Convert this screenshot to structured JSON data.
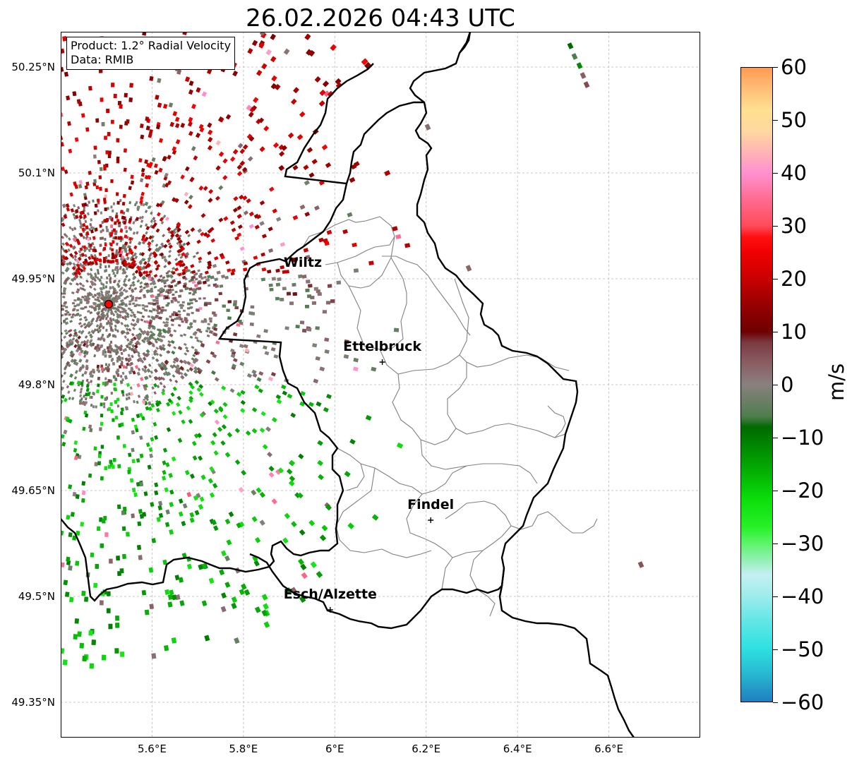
{
  "title": "26.02.2026 04:43 UTC",
  "info_box": {
    "product": "Product: 1.2° Radial Velocity",
    "data": "Data: RMIB"
  },
  "axes": {
    "lon_range": [
      5.4,
      6.8
    ],
    "lat_range": [
      49.3,
      50.3
    ],
    "x_ticks": [
      {
        "value": 5.6,
        "label": "5.6°E"
      },
      {
        "value": 5.8,
        "label": "5.8°E"
      },
      {
        "value": 6.0,
        "label": "6°E"
      },
      {
        "value": 6.2,
        "label": "6.2°E"
      },
      {
        "value": 6.4,
        "label": "6.4°E"
      },
      {
        "value": 6.6,
        "label": "6.6°E"
      }
    ],
    "y_ticks": [
      {
        "value": 50.25,
        "label": "50.25°N"
      },
      {
        "value": 50.1,
        "label": "50.1°N"
      },
      {
        "value": 49.95,
        "label": "49.95°N"
      },
      {
        "value": 49.8,
        "label": "49.8°N"
      },
      {
        "value": 49.65,
        "label": "49.65°N"
      },
      {
        "value": 49.5,
        "label": "49.5°N"
      },
      {
        "value": 49.35,
        "label": "49.35°N"
      }
    ],
    "grid": true
  },
  "radar_site": {
    "lon": 5.505,
    "lat": 49.914,
    "color": "#ff0000"
  },
  "cities": [
    {
      "name": "Wiltz",
      "lon": 5.93,
      "lat": 49.967,
      "marker": false
    },
    {
      "name": "Ettelbruck",
      "lon": 6.104,
      "lat": 49.848,
      "marker": true
    },
    {
      "name": "Findel",
      "lon": 6.21,
      "lat": 49.624,
      "marker": true
    },
    {
      "name": "Esch/Alzette",
      "lon": 5.99,
      "lat": 49.497,
      "marker": true
    }
  ],
  "colorbar": {
    "unit": "m/s",
    "vmin": -60,
    "vmax": 60,
    "ticks": [
      {
        "value": 60,
        "label": "60"
      },
      {
        "value": 50,
        "label": "50"
      },
      {
        "value": 40,
        "label": "40"
      },
      {
        "value": 30,
        "label": "30"
      },
      {
        "value": 20,
        "label": "20"
      },
      {
        "value": 10,
        "label": "10"
      },
      {
        "value": 0,
        "label": "0"
      },
      {
        "value": -10,
        "label": "−10"
      },
      {
        "value": -20,
        "label": "−20"
      },
      {
        "value": -30,
        "label": "−30"
      },
      {
        "value": -40,
        "label": "−40"
      },
      {
        "value": -50,
        "label": "−50"
      },
      {
        "value": -60,
        "label": "−60"
      }
    ],
    "stops": [
      {
        "value": -60,
        "color": "#1f7fc0"
      },
      {
        "value": -55,
        "color": "#27b6d0"
      },
      {
        "value": -50,
        "color": "#2ee0e0"
      },
      {
        "value": -45,
        "color": "#5fe6e6"
      },
      {
        "value": -40,
        "color": "#9eecec"
      },
      {
        "value": -36,
        "color": "#c4f0f2"
      },
      {
        "value": -33,
        "color": "#8ff0b0"
      },
      {
        "value": -30,
        "color": "#5cf56a"
      },
      {
        "value": -27,
        "color": "#28f028"
      },
      {
        "value": -22,
        "color": "#0ce00c"
      },
      {
        "value": -17,
        "color": "#04b404"
      },
      {
        "value": -12,
        "color": "#028a02"
      },
      {
        "value": -8,
        "color": "#006a00"
      },
      {
        "value": -6,
        "color": "#4e7e4e"
      },
      {
        "value": 0,
        "color": "#8a8080"
      },
      {
        "value": 4,
        "color": "#8a5e64"
      },
      {
        "value": 8,
        "color": "#7a3a40"
      },
      {
        "value": 10,
        "color": "#6e0000"
      },
      {
        "value": 15,
        "color": "#960000"
      },
      {
        "value": 20,
        "color": "#c80000"
      },
      {
        "value": 25,
        "color": "#f00000"
      },
      {
        "value": 28,
        "color": "#ff1010"
      },
      {
        "value": 30,
        "color": "#ff4a5a"
      },
      {
        "value": 35,
        "color": "#ff6a90"
      },
      {
        "value": 40,
        "color": "#ff90d0"
      },
      {
        "value": 44,
        "color": "#ffb4b4"
      },
      {
        "value": 48,
        "color": "#ffd8a0"
      },
      {
        "value": 52,
        "color": "#ffe090"
      },
      {
        "value": 56,
        "color": "#ffbe78"
      },
      {
        "value": 60,
        "color": "#ff9a50"
      }
    ]
  },
  "colors": {
    "gate_green": "#10a010",
    "gate_gray": "#7a7070",
    "gate_red": "#a00000"
  }
}
